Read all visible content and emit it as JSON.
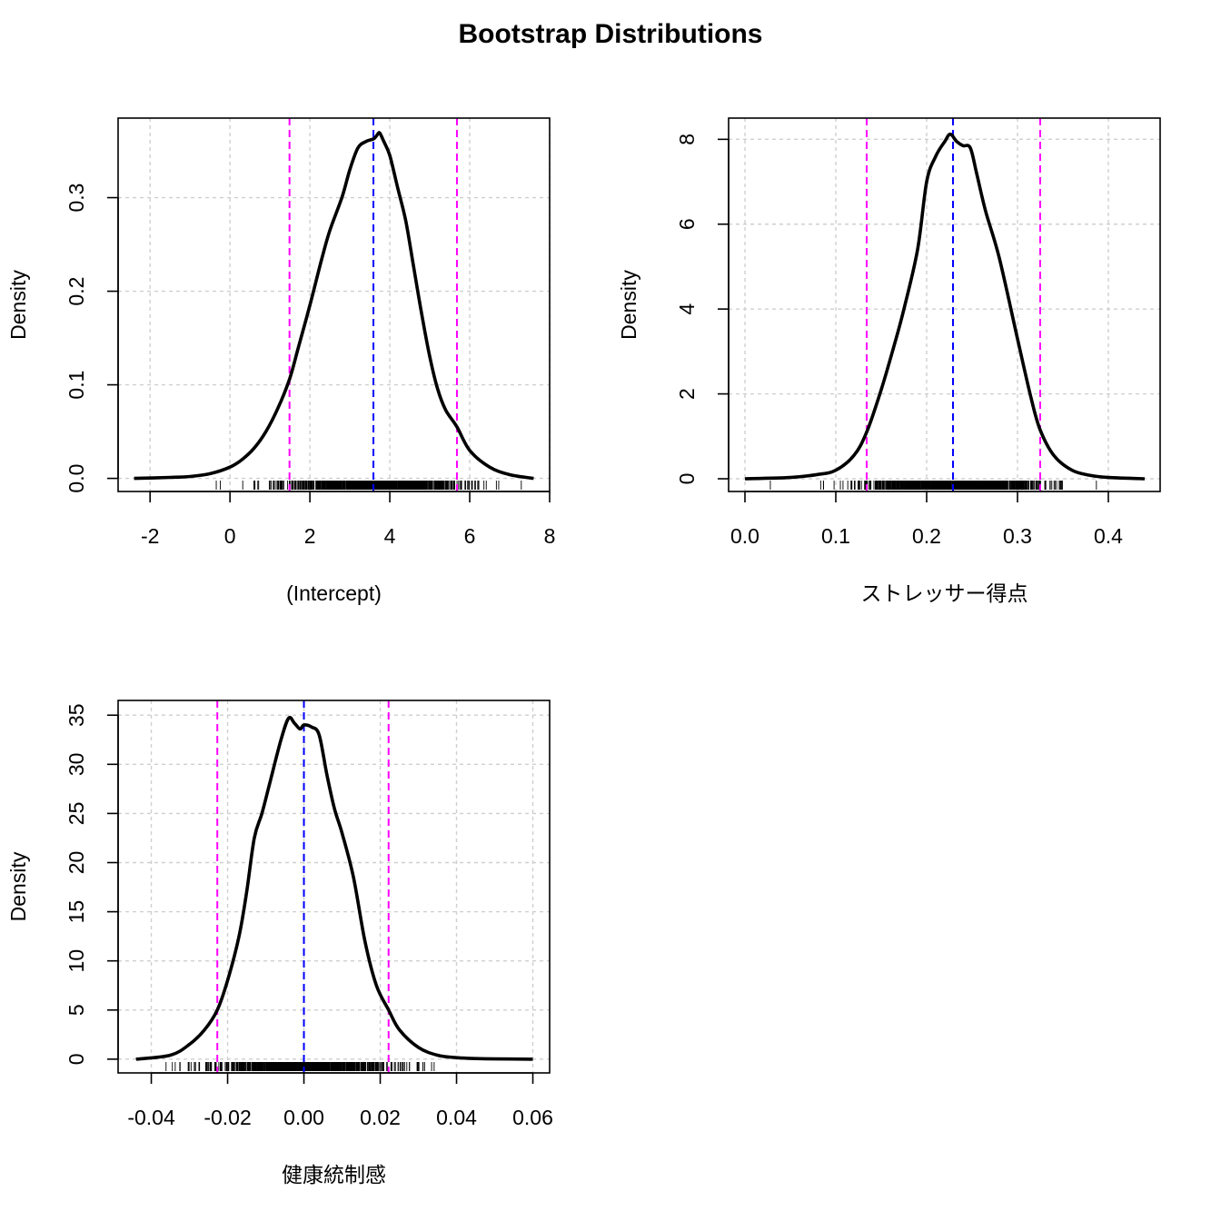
{
  "title": "Bootstrap Distributions",
  "style": {
    "density_color": "#000000",
    "ci_color": "#ff00ff",
    "estimate_color": "#0000ff",
    "grid_color": "#cfcfcf"
  },
  "chart_data": [
    {
      "type": "line",
      "title": "",
      "xlabel": "(Intercept)",
      "ylabel": "Density",
      "xlim": [
        -2.8,
        8.0
      ],
      "ylim": [
        -0.014,
        0.385
      ],
      "xticks": [
        -2,
        0,
        2,
        4,
        6,
        8
      ],
      "xtick_labels": [
        "-2",
        "0",
        "2",
        "4",
        "6",
        "8"
      ],
      "yticks": [
        0.0,
        0.1,
        0.2,
        0.3
      ],
      "ytick_labels": [
        "0.0",
        "0.1",
        "0.2",
        "0.3"
      ],
      "grid": true,
      "estimate": 3.59,
      "ci": [
        1.49,
        5.68
      ],
      "rug_range": [
        -1.9,
        7.4
      ],
      "rug_center": 3.59,
      "rug_sd": 1.13,
      "series": [
        {
          "x": [
            -2.4,
            -1.5,
            -1.0,
            -0.5,
            0.0,
            0.3,
            0.6,
            0.9,
            1.2,
            1.49,
            1.7,
            2.0,
            2.3,
            2.5,
            2.8,
            3.0,
            3.2,
            3.4,
            3.6,
            3.7,
            3.75,
            3.85,
            4.0,
            4.2,
            4.4,
            4.6,
            4.8,
            5.0,
            5.2,
            5.4,
            5.68,
            6.0,
            6.5,
            7.0,
            7.6
          ],
          "y": [
            0.0,
            0.001,
            0.002,
            0.005,
            0.012,
            0.02,
            0.032,
            0.05,
            0.075,
            0.106,
            0.138,
            0.185,
            0.235,
            0.265,
            0.3,
            0.33,
            0.353,
            0.36,
            0.363,
            0.368,
            0.369,
            0.36,
            0.345,
            0.31,
            0.275,
            0.225,
            0.175,
            0.13,
            0.095,
            0.073,
            0.055,
            0.03,
            0.012,
            0.004,
            0.0
          ]
        }
      ]
    },
    {
      "type": "line",
      "title": "",
      "xlabel": "ストレッサー得点",
      "ylabel": "Density",
      "xlim": [
        -0.018,
        0.457
      ],
      "ylim": [
        -0.3,
        8.5
      ],
      "xticks": [
        0.0,
        0.1,
        0.2,
        0.3,
        0.4
      ],
      "xtick_labels": [
        "0.0",
        "0.1",
        "0.2",
        "0.3",
        "0.4"
      ],
      "yticks": [
        0,
        2,
        4,
        6,
        8
      ],
      "ytick_labels": [
        "0",
        "2",
        "4",
        "6",
        "8"
      ],
      "grid": true,
      "estimate": 0.229,
      "ci": [
        0.134,
        0.325
      ],
      "rug_range": [
        0.02,
        0.42
      ],
      "rug_center": 0.229,
      "rug_sd": 0.05,
      "series": [
        {
          "x": [
            0.0,
            0.05,
            0.08,
            0.1,
            0.12,
            0.134,
            0.15,
            0.165,
            0.175,
            0.19,
            0.2,
            0.21,
            0.22,
            0.226,
            0.233,
            0.24,
            0.248,
            0.255,
            0.265,
            0.28,
            0.3,
            0.315,
            0.325,
            0.34,
            0.36,
            0.38,
            0.4,
            0.44
          ],
          "y": [
            0.0,
            0.03,
            0.1,
            0.2,
            0.55,
            1.1,
            2.1,
            3.2,
            4.0,
            5.4,
            7.0,
            7.6,
            7.95,
            8.12,
            7.95,
            7.85,
            7.8,
            7.2,
            6.3,
            5.2,
            3.3,
            1.9,
            1.15,
            0.55,
            0.2,
            0.08,
            0.03,
            0.0
          ]
        }
      ]
    },
    {
      "type": "line",
      "title": "",
      "xlabel": "健康統制感",
      "ylabel": "Density",
      "xlim": [
        -0.0487,
        0.0644
      ],
      "ylim": [
        -1.4,
        36.5
      ],
      "xticks": [
        -0.04,
        -0.02,
        0.0,
        0.02,
        0.04,
        0.06
      ],
      "xtick_labels": [
        "-0.04",
        "-0.02",
        "0.00",
        "0.02",
        "0.04",
        "0.06"
      ],
      "yticks": [
        0,
        5,
        10,
        15,
        20,
        25,
        30,
        35
      ],
      "ytick_labels": [
        "0",
        "5",
        "10",
        "15",
        "20",
        "25",
        "30",
        "35"
      ],
      "grid": true,
      "estimate": 0.0,
      "ci": [
        -0.0227,
        0.0222
      ],
      "rug_range": [
        -0.04,
        0.057
      ],
      "rug_center": 0.0,
      "rug_sd": 0.0115,
      "series": [
        {
          "x": [
            -0.044,
            -0.035,
            -0.03,
            -0.026,
            -0.0227,
            -0.02,
            -0.017,
            -0.015,
            -0.013,
            -0.011,
            -0.009,
            -0.006,
            -0.004,
            -0.0025,
            -0.001,
            0.0,
            0.002,
            0.004,
            0.006,
            0.008,
            0.01,
            0.013,
            0.016,
            0.019,
            0.0222,
            0.025,
            0.03,
            0.035,
            0.04,
            0.045,
            0.05,
            0.06
          ],
          "y": [
            0.0,
            0.4,
            1.5,
            3.0,
            5.0,
            8.0,
            12.5,
            17.0,
            22.5,
            25.0,
            28.0,
            32.5,
            34.7,
            34.2,
            33.6,
            34.0,
            33.8,
            33.0,
            29.0,
            25.5,
            23.0,
            18.5,
            12.0,
            7.5,
            5.0,
            3.0,
            1.2,
            0.4,
            0.15,
            0.06,
            0.02,
            0.0
          ]
        }
      ]
    }
  ]
}
